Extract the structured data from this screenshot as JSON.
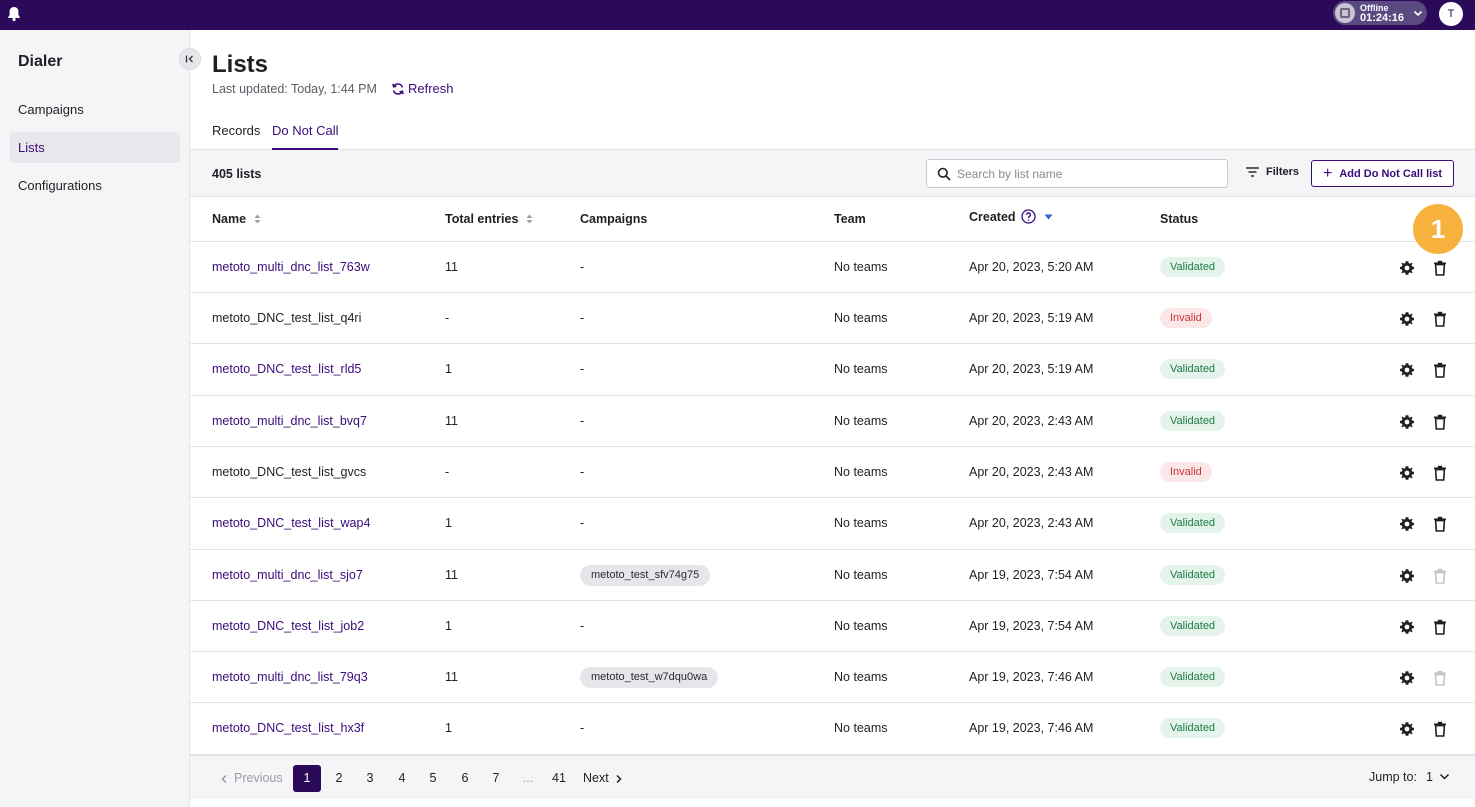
{
  "topbar": {
    "status_line1": "Offline",
    "status_line2": "01:24:16",
    "avatar_initial": "T"
  },
  "sidebar": {
    "title": "Dialer",
    "items": [
      {
        "label": "Campaigns",
        "active": false
      },
      {
        "label": "Lists",
        "active": true
      },
      {
        "label": "Configurations",
        "active": false
      }
    ]
  },
  "header": {
    "title": "Lists",
    "last_updated": "Last updated: Today, 1:44 PM",
    "refresh_label": "Refresh"
  },
  "tabs": [
    {
      "label": "Records",
      "active": false
    },
    {
      "label": "Do Not Call",
      "active": true
    }
  ],
  "toolbar": {
    "count": "405 lists",
    "search_placeholder": "Search by list name",
    "filters_label": "Filters",
    "add_label": "Add Do Not Call list"
  },
  "table": {
    "columns": [
      "Name",
      "Total entries",
      "Campaigns",
      "Team",
      "Created",
      "Status"
    ],
    "rows": [
      {
        "name": "metoto_multi_dnc_list_763w",
        "entries": "11",
        "campaign": "-",
        "team": "No teams",
        "created": "Apr 20, 2023, 5:20 AM",
        "status": "Validated"
      },
      {
        "name": "metoto_DNC_test_list_q4ri",
        "entries": "-",
        "campaign": "-",
        "team": "No teams",
        "created": "Apr 20, 2023, 5:19 AM",
        "status": "Invalid"
      },
      {
        "name": "metoto_DNC_test_list_rld5",
        "entries": "1",
        "campaign": "-",
        "team": "No teams",
        "created": "Apr 20, 2023, 5:19 AM",
        "status": "Validated"
      },
      {
        "name": "metoto_multi_dnc_list_bvq7",
        "entries": "11",
        "campaign": "-",
        "team": "No teams",
        "created": "Apr 20, 2023, 2:43 AM",
        "status": "Validated"
      },
      {
        "name": "metoto_DNC_test_list_gvcs",
        "entries": "-",
        "campaign": "-",
        "team": "No teams",
        "created": "Apr 20, 2023, 2:43 AM",
        "status": "Invalid"
      },
      {
        "name": "metoto_DNC_test_list_wap4",
        "entries": "1",
        "campaign": "-",
        "team": "No teams",
        "created": "Apr 20, 2023, 2:43 AM",
        "status": "Validated"
      },
      {
        "name": "metoto_multi_dnc_list_sjo7",
        "entries": "11",
        "campaign": "metoto_test_sfv74g75",
        "team": "No teams",
        "created": "Apr 19, 2023, 7:54 AM",
        "status": "Validated"
      },
      {
        "name": "metoto_DNC_test_list_job2",
        "entries": "1",
        "campaign": "-",
        "team": "No teams",
        "created": "Apr 19, 2023, 7:54 AM",
        "status": "Validated"
      },
      {
        "name": "metoto_multi_dnc_list_79q3",
        "entries": "11",
        "campaign": "metoto_test_w7dqu0wa",
        "team": "No teams",
        "created": "Apr 19, 2023, 7:46 AM",
        "status": "Validated"
      },
      {
        "name": "metoto_DNC_test_list_hx3f",
        "entries": "1",
        "campaign": "-",
        "team": "No teams",
        "created": "Apr 19, 2023, 7:46 AM",
        "status": "Validated"
      }
    ]
  },
  "marker": "1",
  "pagination": {
    "prev_label": "Previous",
    "pages": [
      "1",
      "2",
      "3",
      "4",
      "5",
      "6",
      "7",
      "...",
      "41"
    ],
    "current": "1",
    "next_label": "Next",
    "jump_label": "Jump to:",
    "jump_value": "1"
  },
  "colors": {
    "brand": "#2c0a5a",
    "accent": "#3b0b7a",
    "marker": "#f6b23c",
    "validated": "#1f7a45",
    "invalid": "#c93535"
  },
  "icons": [
    "bell-icon",
    "status-icon",
    "chevron-down-icon",
    "collapse-icon",
    "refresh-icon",
    "search-icon",
    "filter-icon",
    "plus-icon",
    "sort-icon",
    "help-icon",
    "sort-desc-icon",
    "gear-icon",
    "trash-icon",
    "chevron-left-icon",
    "chevron-right-icon"
  ]
}
